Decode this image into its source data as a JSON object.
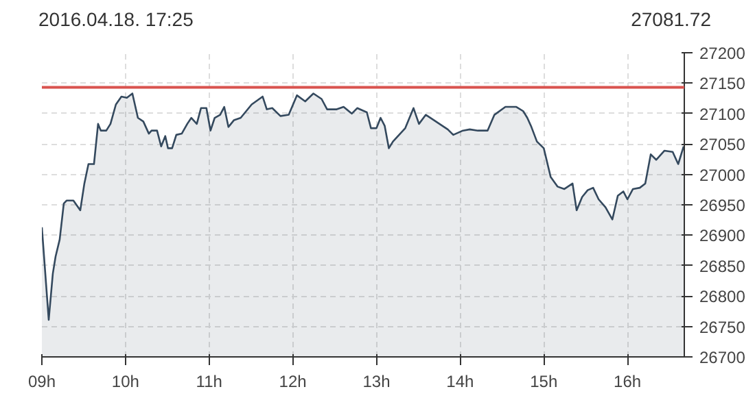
{
  "chart_data": {
    "type": "area",
    "title": "2016.04.18. 17:25",
    "subtitle": "27081.72",
    "x": [
      9.0,
      9.082,
      9.131,
      9.164,
      9.213,
      9.262,
      9.295,
      9.377,
      9.459,
      9.508,
      9.557,
      9.623,
      9.672,
      9.705,
      9.77,
      9.82,
      9.885,
      9.951,
      10.016,
      10.082,
      10.148,
      10.213,
      10.279,
      10.311,
      10.377,
      10.426,
      10.475,
      10.508,
      10.557,
      10.607,
      10.672,
      10.738,
      10.787,
      10.852,
      10.902,
      10.967,
      11.016,
      11.066,
      11.131,
      11.18,
      11.23,
      11.295,
      11.377,
      11.508,
      11.639,
      11.689,
      11.754,
      11.852,
      11.951,
      12.049,
      12.148,
      12.246,
      12.344,
      12.41,
      12.525,
      12.607,
      12.705,
      12.77,
      12.885,
      12.934,
      13.0,
      13.049,
      13.098,
      13.148,
      13.197,
      13.344,
      13.443,
      13.508,
      13.59,
      13.689,
      13.787,
      13.852,
      13.918,
      14.033,
      14.115,
      14.213,
      14.328,
      14.41,
      14.541,
      14.672,
      14.754,
      14.803,
      14.852,
      14.918,
      15.0,
      15.082,
      15.164,
      15.246,
      15.344,
      15.393,
      15.459,
      15.525,
      15.59,
      15.656,
      15.738,
      15.82,
      15.885,
      15.951,
      16.0,
      16.066,
      16.148,
      16.213,
      16.279,
      16.344,
      16.443,
      16.541,
      16.607,
      16.672
    ],
    "series": [
      {
        "color": "#34495e",
        "values": [
          26913,
          26761,
          26837,
          26865,
          26893,
          26952,
          26957,
          26957,
          26941,
          26985,
          27017,
          27017,
          27083,
          27072,
          27072,
          27083,
          27115,
          27128,
          27126,
          27133,
          27093,
          27087,
          27067,
          27072,
          27072,
          27046,
          27063,
          27043,
          27043,
          27065,
          27067,
          27083,
          27093,
          27083,
          27109,
          27109,
          27072,
          27093,
          27098,
          27111,
          27078,
          27089,
          27093,
          27115,
          27128,
          27107,
          27109,
          27096,
          27098,
          27130,
          27120,
          27133,
          27124,
          27107,
          27107,
          27111,
          27100,
          27109,
          27102,
          27076,
          27076,
          27093,
          27080,
          27043,
          27054,
          27076,
          27109,
          27083,
          27098,
          27089,
          27080,
          27074,
          27065,
          27072,
          27074,
          27072,
          27072,
          27098,
          27111,
          27111,
          27104,
          27093,
          27078,
          27054,
          27043,
          26996,
          26980,
          26976,
          26985,
          26941,
          26963,
          26974,
          26978,
          26959,
          26946,
          26926,
          26965,
          26972,
          26959,
          26976,
          26978,
          26985,
          27033,
          27024,
          27039,
          27037,
          27017,
          27046
        ]
      }
    ],
    "xlim": [
      9,
      16.68
    ],
    "xticks": [
      {
        "value": 9,
        "label": "09h"
      },
      {
        "value": 10,
        "label": "10h"
      },
      {
        "value": 11,
        "label": "11h"
      },
      {
        "value": 12,
        "label": "12h"
      },
      {
        "value": 13,
        "label": "13h"
      },
      {
        "value": 14,
        "label": "14h"
      },
      {
        "value": 15,
        "label": "15h"
      },
      {
        "value": 16,
        "label": "16h"
      }
    ],
    "ylim": [
      26700,
      27200
    ],
    "yticks": [
      26700,
      26750,
      26800,
      26850,
      26900,
      26950,
      27000,
      27050,
      27100,
      27150,
      27200
    ],
    "ref_lines": [
      {
        "axis": "y",
        "value": 27143,
        "color": "#d9534f"
      }
    ],
    "grid": true
  }
}
